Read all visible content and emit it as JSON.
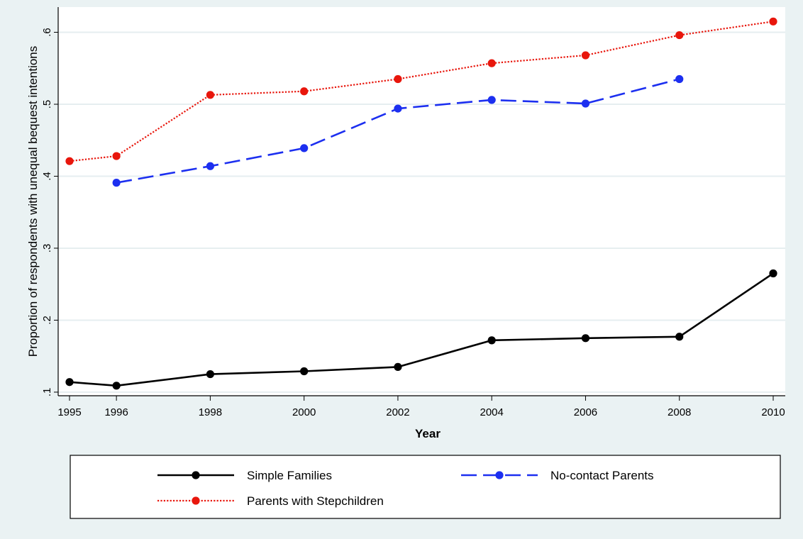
{
  "chart_data": {
    "type": "line",
    "xlabel": "Year",
    "ylabel": "Proportion of respondents with unequal bequest intentions",
    "x_ticks": [
      1995,
      1996,
      1998,
      2000,
      2002,
      2004,
      2006,
      2008,
      2010
    ],
    "y_ticks": [
      0.1,
      0.2,
      0.3,
      0.4,
      0.5,
      0.6
    ],
    "y_tick_labels": [
      ".1",
      ".2",
      ".3",
      ".4",
      ".5",
      ".6"
    ],
    "xlim": [
      1995,
      2010
    ],
    "ylim": [
      0.095,
      0.635
    ],
    "grid": "horizontal",
    "legend_position": "bottom",
    "series": [
      {
        "name": "Simple Families",
        "color": "#000000",
        "dash": "solid",
        "x": [
          1995,
          1996,
          1998,
          2000,
          2002,
          2004,
          2006,
          2008,
          2010
        ],
        "values": [
          0.114,
          0.109,
          0.125,
          0.129,
          0.135,
          0.172,
          0.175,
          0.177,
          0.265
        ]
      },
      {
        "name": "No-contact Parents",
        "color": "#1c2ff0",
        "dash": "dashed",
        "x": [
          1996,
          1998,
          2000,
          2002,
          2004,
          2006,
          2008
        ],
        "values": [
          0.391,
          0.414,
          0.439,
          0.494,
          0.506,
          0.501,
          0.535
        ]
      },
      {
        "name": "Parents with Stepchildren",
        "color": "#e8160c",
        "dash": "dotted",
        "x": [
          1995,
          1996,
          1998,
          2000,
          2002,
          2004,
          2006,
          2008,
          2010
        ],
        "values": [
          0.421,
          0.428,
          0.513,
          0.518,
          0.535,
          0.557,
          0.568,
          0.596,
          0.615
        ]
      }
    ]
  }
}
